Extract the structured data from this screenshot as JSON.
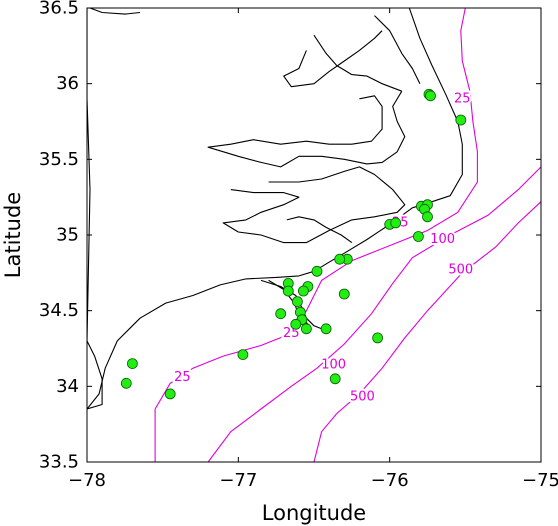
{
  "chart_data": {
    "type": "scatter",
    "xlabel": "Longitude",
    "ylabel": "Latitude",
    "xlim": [
      -78,
      -75
    ],
    "ylim": [
      33.5,
      36.5
    ],
    "xticks": [
      -78,
      -77,
      -76,
      -75
    ],
    "xtick_labels": [
      "−78",
      "−77",
      "−76",
      "−75"
    ],
    "yticks": [
      33.5,
      34,
      34.5,
      35,
      35.5,
      36,
      36.5
    ],
    "ytick_labels": [
      "33.5",
      "34",
      "34.5",
      "35",
      "35.5",
      "36",
      "36.5"
    ],
    "grid": false,
    "contour_color": "#e000e0",
    "marker_color": "#22ee11",
    "contours": [
      {
        "level": "25",
        "points": [
          [
            -75.5,
            36.5
          ],
          [
            -75.53,
            36.35
          ],
          [
            -75.52,
            36.15
          ],
          [
            -75.47,
            35.95
          ],
          [
            -75.45,
            35.75
          ],
          [
            -75.42,
            35.55
          ],
          [
            -75.42,
            35.35
          ],
          [
            -75.55,
            35.15
          ],
          [
            -75.75,
            35.03
          ],
          [
            -76.0,
            34.93
          ],
          [
            -76.25,
            34.83
          ],
          [
            -76.45,
            34.7
          ],
          [
            -76.55,
            34.5
          ],
          [
            -76.65,
            34.35
          ],
          [
            -76.85,
            34.27
          ],
          [
            -77.1,
            34.2
          ],
          [
            -77.3,
            34.12
          ],
          [
            -77.45,
            34.02
          ],
          [
            -77.55,
            33.85
          ],
          [
            -77.55,
            33.65
          ],
          [
            -77.55,
            33.5
          ]
        ]
      },
      {
        "level": "100",
        "points": [
          [
            -75.0,
            35.45
          ],
          [
            -75.15,
            35.3
          ],
          [
            -75.35,
            35.13
          ],
          [
            -75.6,
            35.0
          ],
          [
            -75.85,
            34.85
          ],
          [
            -75.98,
            34.68
          ],
          [
            -76.12,
            34.48
          ],
          [
            -76.3,
            34.28
          ],
          [
            -76.48,
            34.12
          ],
          [
            -76.65,
            34.0
          ],
          [
            -76.85,
            33.85
          ],
          [
            -77.05,
            33.7
          ],
          [
            -77.2,
            33.5
          ]
        ]
      },
      {
        "level": "500",
        "points": [
          [
            -75.0,
            35.22
          ],
          [
            -75.15,
            35.08
          ],
          [
            -75.3,
            34.92
          ],
          [
            -75.52,
            34.75
          ],
          [
            -75.75,
            34.5
          ],
          [
            -75.9,
            34.32
          ],
          [
            -76.05,
            34.12
          ],
          [
            -76.2,
            33.95
          ],
          [
            -76.35,
            33.82
          ],
          [
            -76.45,
            33.7
          ],
          [
            -76.5,
            33.5
          ]
        ]
      }
    ],
    "contour_labels": [
      {
        "text": "25",
        "lon": -75.52,
        "lat": 35.9
      },
      {
        "text": "25",
        "lon": -75.93,
        "lat": 35.08
      },
      {
        "text": "25",
        "lon": -76.65,
        "lat": 34.35
      },
      {
        "text": "25",
        "lon": -77.37,
        "lat": 34.06
      },
      {
        "text": "100",
        "lon": -75.65,
        "lat": 34.97
      },
      {
        "text": "100",
        "lon": -76.37,
        "lat": 34.14
      },
      {
        "text": "500",
        "lon": -75.53,
        "lat": 34.77
      },
      {
        "text": "500",
        "lon": -76.18,
        "lat": 33.93
      }
    ],
    "coastlines": [
      [
        [
          -78.0,
          33.85
        ],
        [
          -77.92,
          33.95
        ],
        [
          -77.88,
          34.12
        ],
        [
          -77.8,
          34.3
        ],
        [
          -77.65,
          34.45
        ],
        [
          -77.48,
          34.55
        ],
        [
          -77.3,
          34.6
        ],
        [
          -77.12,
          34.67
        ],
        [
          -76.95,
          34.71
        ],
        [
          -76.75,
          34.72
        ],
        [
          -76.6,
          34.73
        ],
        [
          -76.5,
          34.76
        ],
        [
          -76.4,
          34.82
        ],
        [
          -76.3,
          34.88
        ],
        [
          -76.15,
          34.97
        ],
        [
          -76.0,
          35.07
        ],
        [
          -75.85,
          35.18
        ],
        [
          -75.72,
          35.22
        ],
        [
          -75.6,
          35.26
        ],
        [
          -75.52,
          35.4
        ],
        [
          -75.52,
          35.6
        ],
        [
          -75.55,
          35.75
        ],
        [
          -75.63,
          35.93
        ],
        [
          -75.72,
          36.12
        ],
        [
          -75.8,
          36.3
        ],
        [
          -75.87,
          36.5
        ]
      ],
      [
        [
          -78.0,
          36.5
        ],
        [
          -78.0,
          35.9
        ],
        [
          -77.98,
          35.3
        ],
        [
          -78.0,
          34.3
        ],
        [
          -77.95,
          34.2
        ],
        [
          -77.9,
          34.05
        ],
        [
          -77.9,
          33.88
        ],
        [
          -78.0,
          33.85
        ]
      ],
      [
        [
          -77.98,
          36.5
        ],
        [
          -77.9,
          36.47
        ],
        [
          -77.75,
          36.46
        ],
        [
          -77.65,
          36.47
        ]
      ],
      [
        [
          -76.85,
          34.7
        ],
        [
          -76.72,
          34.66
        ],
        [
          -76.62,
          34.6
        ],
        [
          -76.58,
          34.52
        ],
        [
          -76.55,
          34.45
        ],
        [
          -76.5,
          34.4
        ],
        [
          -76.45,
          34.38
        ]
      ],
      [
        [
          -76.8,
          34.7
        ],
        [
          -76.7,
          34.64
        ],
        [
          -76.63,
          34.55
        ],
        [
          -76.6,
          34.47
        ],
        [
          -76.53,
          34.4
        ]
      ],
      [
        [
          -76.55,
          36.22
        ],
        [
          -76.6,
          36.1
        ],
        [
          -76.7,
          36.05
        ],
        [
          -76.65,
          35.98
        ],
        [
          -76.5,
          36.0
        ],
        [
          -76.4,
          36.08
        ],
        [
          -76.3,
          36.15
        ],
        [
          -76.2,
          36.22
        ],
        [
          -76.1,
          36.3
        ],
        [
          -76.05,
          36.35
        ]
      ],
      [
        [
          -76.5,
          36.32
        ],
        [
          -76.42,
          36.2
        ],
        [
          -76.35,
          36.12
        ],
        [
          -76.25,
          36.06
        ],
        [
          -76.15,
          36.05
        ],
        [
          -76.05,
          36.0
        ],
        [
          -75.92,
          35.95
        ]
      ],
      [
        [
          -76.1,
          36.45
        ],
        [
          -76.0,
          36.35
        ],
        [
          -75.92,
          36.2
        ],
        [
          -75.85,
          36.1
        ],
        [
          -75.8,
          36.0
        ]
      ],
      [
        [
          -75.92,
          35.95
        ],
        [
          -75.98,
          35.85
        ],
        [
          -75.95,
          35.75
        ],
        [
          -75.9,
          35.65
        ],
        [
          -75.95,
          35.55
        ],
        [
          -76.05,
          35.48
        ],
        [
          -76.15,
          35.47
        ],
        [
          -76.3,
          35.5
        ],
        [
          -76.45,
          35.52
        ],
        [
          -76.6,
          35.52
        ],
        [
          -76.72,
          35.45
        ],
        [
          -76.85,
          35.48
        ],
        [
          -77.0,
          35.52
        ],
        [
          -77.2,
          35.58
        ],
        [
          -77.05,
          35.6
        ],
        [
          -76.9,
          35.63
        ],
        [
          -76.72,
          35.6
        ],
        [
          -76.55,
          35.62
        ],
        [
          -76.4,
          35.6
        ],
        [
          -76.25,
          35.6
        ],
        [
          -76.12,
          35.62
        ],
        [
          -76.05,
          35.7
        ],
        [
          -76.05,
          35.85
        ],
        [
          -76.1,
          35.92
        ],
        [
          -76.2,
          35.9
        ]
      ],
      [
        [
          -76.8,
          35.35
        ],
        [
          -76.6,
          35.35
        ],
        [
          -76.45,
          35.37
        ],
        [
          -76.3,
          35.42
        ],
        [
          -76.2,
          35.45
        ],
        [
          -76.1,
          35.4
        ],
        [
          -75.98,
          35.3
        ],
        [
          -75.9,
          35.2
        ],
        [
          -75.95,
          35.15
        ],
        [
          -76.1,
          35.12
        ],
        [
          -76.25,
          35.1
        ],
        [
          -76.4,
          35.03
        ],
        [
          -76.55,
          34.95
        ],
        [
          -76.7,
          34.95
        ],
        [
          -76.85,
          35.0
        ],
        [
          -77.0,
          35.02
        ],
        [
          -77.1,
          35.08
        ],
        [
          -76.95,
          35.1
        ],
        [
          -76.85,
          35.15
        ],
        [
          -76.7,
          35.2
        ],
        [
          -76.6,
          35.25
        ],
        [
          -76.7,
          35.28
        ],
        [
          -76.9,
          35.28
        ],
        [
          -77.05,
          35.3
        ]
      ],
      [
        [
          -76.68,
          35.1
        ],
        [
          -76.6,
          35.12
        ],
        [
          -76.5,
          35.1
        ],
        [
          -76.42,
          35.05
        ],
        [
          -76.32,
          35.0
        ],
        [
          -76.25,
          34.95
        ]
      ]
    ],
    "points": [
      {
        "lon": -75.74,
        "lat": 35.93
      },
      {
        "lon": -75.73,
        "lat": 35.92
      },
      {
        "lon": -75.53,
        "lat": 35.76
      },
      {
        "lon": -75.79,
        "lat": 35.19
      },
      {
        "lon": -75.75,
        "lat": 35.2
      },
      {
        "lon": -75.77,
        "lat": 35.17
      },
      {
        "lon": -75.75,
        "lat": 35.12
      },
      {
        "lon": -76.0,
        "lat": 35.07
      },
      {
        "lon": -75.96,
        "lat": 35.08
      },
      {
        "lon": -75.81,
        "lat": 34.99
      },
      {
        "lon": -76.28,
        "lat": 34.84
      },
      {
        "lon": -76.33,
        "lat": 34.84
      },
      {
        "lon": -76.48,
        "lat": 34.76
      },
      {
        "lon": -76.67,
        "lat": 34.68
      },
      {
        "lon": -76.67,
        "lat": 34.63
      },
      {
        "lon": -76.54,
        "lat": 34.66
      },
      {
        "lon": -76.57,
        "lat": 34.63
      },
      {
        "lon": -76.3,
        "lat": 34.61
      },
      {
        "lon": -76.61,
        "lat": 34.56
      },
      {
        "lon": -76.72,
        "lat": 34.48
      },
      {
        "lon": -76.59,
        "lat": 34.49
      },
      {
        "lon": -76.58,
        "lat": 34.44
      },
      {
        "lon": -76.62,
        "lat": 34.41
      },
      {
        "lon": -76.55,
        "lat": 34.38
      },
      {
        "lon": -76.42,
        "lat": 34.38
      },
      {
        "lon": -76.08,
        "lat": 34.32
      },
      {
        "lon": -76.97,
        "lat": 34.21
      },
      {
        "lon": -77.7,
        "lat": 34.15
      },
      {
        "lon": -77.74,
        "lat": 34.02
      },
      {
        "lon": -77.45,
        "lat": 33.95
      },
      {
        "lon": -76.36,
        "lat": 34.05
      }
    ]
  }
}
